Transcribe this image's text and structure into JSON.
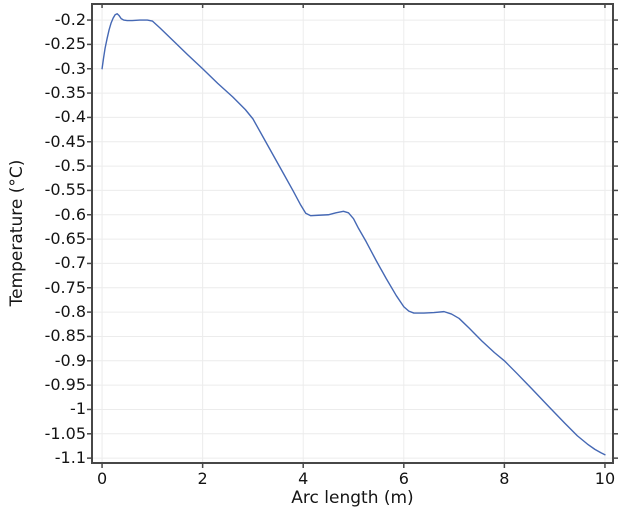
{
  "figure": {
    "background": "#ffffff"
  },
  "chart_data": {
    "type": "line",
    "title": "",
    "xlabel": "Arc length (m)",
    "ylabel": "Temperature (°C)",
    "xlim": [
      -0.2,
      10.16
    ],
    "ylim": [
      -1.11,
      -0.167
    ],
    "grid": true,
    "legend_position": "none",
    "x_ticks": [
      0,
      2,
      4,
      6,
      8,
      10
    ],
    "x_tick_labels": [
      "0",
      "2",
      "4",
      "6",
      "8",
      "10"
    ],
    "y_ticks": [
      -0.2,
      -0.25,
      -0.3,
      -0.35,
      -0.4,
      -0.45,
      -0.5,
      -0.55,
      -0.6,
      -0.65,
      -0.7,
      -0.75,
      -0.8,
      -0.85,
      -0.9,
      -0.95,
      -1,
      -1.05,
      -1.1
    ],
    "y_tick_labels": [
      "-0.2",
      "-0.25",
      "-0.3",
      "-0.35",
      "-0.4",
      "-0.45",
      "-0.5",
      "-0.55",
      "-0.6",
      "-0.65",
      "-0.7",
      "-0.75",
      "-0.8",
      "-0.85",
      "-0.9",
      "-0.95",
      "-1",
      "-1.05",
      "-1.1"
    ],
    "colors": {
      "line": "#4568b4",
      "grid": "#ececec",
      "axis_frame": "#474747",
      "tick": "#474747",
      "text": "#141414"
    },
    "series": [
      {
        "name": "Temperature",
        "color": "#4568b4",
        "points": [
          [
            0.0,
            -0.3
          ],
          [
            0.03,
            -0.278
          ],
          [
            0.06,
            -0.258
          ],
          [
            0.1,
            -0.238
          ],
          [
            0.14,
            -0.22
          ],
          [
            0.18,
            -0.206
          ],
          [
            0.22,
            -0.196
          ],
          [
            0.26,
            -0.189
          ],
          [
            0.3,
            -0.187
          ],
          [
            0.34,
            -0.191
          ],
          [
            0.38,
            -0.197
          ],
          [
            0.43,
            -0.2
          ],
          [
            0.5,
            -0.201
          ],
          [
            0.6,
            -0.201
          ],
          [
            0.75,
            -0.2
          ],
          [
            0.9,
            -0.2
          ],
          [
            1.0,
            -0.202
          ],
          [
            1.15,
            -0.216
          ],
          [
            1.4,
            -0.241
          ],
          [
            1.7,
            -0.271
          ],
          [
            2.0,
            -0.3
          ],
          [
            2.3,
            -0.33
          ],
          [
            2.6,
            -0.358
          ],
          [
            2.85,
            -0.384
          ],
          [
            3.0,
            -0.403
          ],
          [
            3.2,
            -0.44
          ],
          [
            3.4,
            -0.477
          ],
          [
            3.6,
            -0.514
          ],
          [
            3.8,
            -0.551
          ],
          [
            3.95,
            -0.58
          ],
          [
            4.05,
            -0.597
          ],
          [
            4.15,
            -0.602
          ],
          [
            4.3,
            -0.601
          ],
          [
            4.5,
            -0.6
          ],
          [
            4.65,
            -0.596
          ],
          [
            4.8,
            -0.593
          ],
          [
            4.9,
            -0.596
          ],
          [
            5.0,
            -0.608
          ],
          [
            5.1,
            -0.628
          ],
          [
            5.25,
            -0.655
          ],
          [
            5.45,
            -0.694
          ],
          [
            5.65,
            -0.731
          ],
          [
            5.85,
            -0.766
          ],
          [
            6.0,
            -0.789
          ],
          [
            6.1,
            -0.798
          ],
          [
            6.2,
            -0.802
          ],
          [
            6.4,
            -0.802
          ],
          [
            6.6,
            -0.801
          ],
          [
            6.8,
            -0.799
          ],
          [
            6.95,
            -0.804
          ],
          [
            7.1,
            -0.813
          ],
          [
            7.3,
            -0.833
          ],
          [
            7.55,
            -0.859
          ],
          [
            7.8,
            -0.883
          ],
          [
            8.0,
            -0.9
          ],
          [
            8.25,
            -0.926
          ],
          [
            8.55,
            -0.958
          ],
          [
            8.9,
            -0.996
          ],
          [
            9.2,
            -1.028
          ],
          [
            9.45,
            -1.054
          ],
          [
            9.65,
            -1.071
          ],
          [
            9.8,
            -1.082
          ],
          [
            9.92,
            -1.089
          ],
          [
            10.0,
            -1.093
          ]
        ]
      }
    ]
  }
}
